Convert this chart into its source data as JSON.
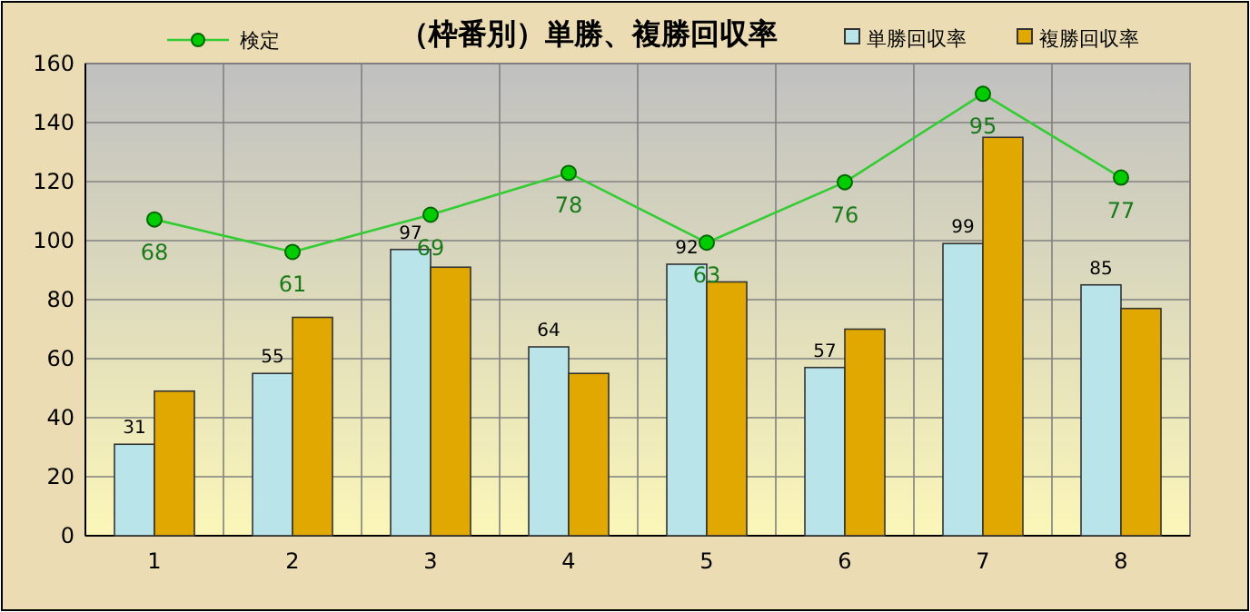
{
  "chart_data": {
    "type": "bar",
    "title": "（枠番別）単勝、複勝回収率",
    "categories": [
      "1",
      "2",
      "3",
      "4",
      "5",
      "6",
      "7",
      "8"
    ],
    "series": [
      {
        "name": "検定",
        "type": "line",
        "axis": "y2",
        "color": "#33cc33",
        "marker": "circle",
        "values": [
          68,
          61,
          69,
          78,
          63,
          76,
          95,
          77
        ],
        "value_labels": [
          "68",
          "61",
          "69",
          "78",
          "63",
          "76",
          "95",
          "77"
        ]
      },
      {
        "name": "単勝回収率",
        "color": "#b8e4ea",
        "values": [
          31,
          55,
          97,
          64,
          92,
          57,
          99,
          85
        ],
        "value_labels": [
          "31",
          "55",
          "97",
          "64",
          "92",
          "57",
          "99",
          "85"
        ]
      },
      {
        "name": "複勝回収率",
        "color": "#e0a800",
        "values": [
          49,
          74,
          91,
          55,
          86,
          70,
          135,
          77
        ]
      }
    ],
    "ylim": [
      0,
      160
    ],
    "yticks": [
      0,
      20,
      40,
      60,
      80,
      100,
      120,
      140,
      160
    ],
    "y2lim": [
      0,
      101.5
    ],
    "grid": true,
    "legend": "top"
  }
}
